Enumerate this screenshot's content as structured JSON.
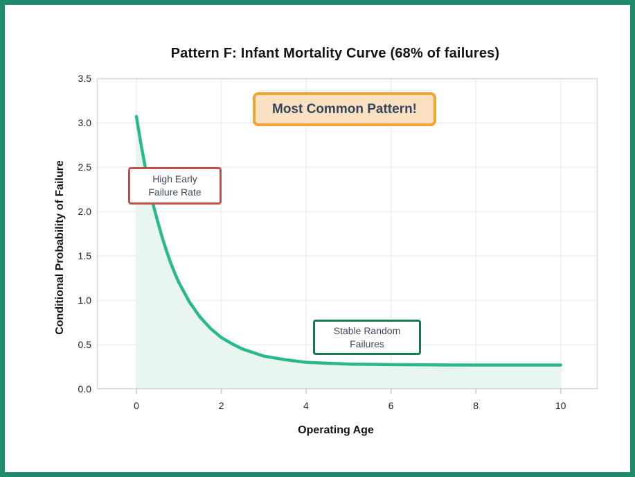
{
  "frame": {
    "border_color": "#208A6D",
    "background": "#ffffff"
  },
  "chart_data": {
    "type": "area",
    "title": "Pattern F: Infant Mortality Curve (68% of failures)",
    "xlabel": "Operating Age",
    "ylabel": "Conditional Probability of Failure",
    "xlim": [
      -0.93,
      10.87
    ],
    "ylim": [
      0,
      3.5
    ],
    "x_ticks": [
      0,
      2,
      4,
      6,
      8,
      10
    ],
    "y_ticks": [
      0.0,
      0.5,
      1.0,
      1.5,
      2.0,
      2.5,
      3.0,
      3.5
    ],
    "grid": true,
    "legend_position": "none",
    "colors": {
      "line": "#2AB98C",
      "fill": "#E9F6EF",
      "gridline": "#EBEBEB",
      "plot_border": "#D8D8D8",
      "tick_mark": "#C9C9C9"
    },
    "series": [
      {
        "name": "conditional-failure-probability",
        "x": [
          0,
          0.1,
          0.2,
          0.3,
          0.4,
          0.5,
          0.6,
          0.7,
          0.8,
          0.9,
          1.0,
          1.25,
          1.5,
          1.75,
          2.0,
          2.25,
          2.5,
          2.75,
          3.0,
          3.25,
          3.5,
          4.0,
          4.5,
          5.0,
          5.5,
          6.0,
          7.0,
          8.0,
          9.0,
          10.0
        ],
        "y": [
          3.07,
          2.78,
          2.52,
          2.28,
          2.07,
          1.89,
          1.72,
          1.57,
          1.43,
          1.31,
          1.2,
          0.98,
          0.81,
          0.68,
          0.58,
          0.51,
          0.45,
          0.41,
          0.37,
          0.35,
          0.33,
          0.3,
          0.29,
          0.28,
          0.277,
          0.274,
          0.271,
          0.27,
          0.27,
          0.27
        ]
      }
    ],
    "annotations": [
      {
        "text": "Most Common Pattern!",
        "border_color": "#F0A431",
        "background": "#FBE0C2",
        "text_color": "#32455B"
      },
      {
        "text": "High Early\nFailure Rate",
        "border_color": "#C4504E",
        "background": "#ffffff",
        "text_color": "#3A4A5C"
      },
      {
        "text": "Stable Random\nFailures",
        "border_color": "#18784E",
        "background": "#ffffff",
        "text_color": "#3A4A5C"
      }
    ]
  }
}
